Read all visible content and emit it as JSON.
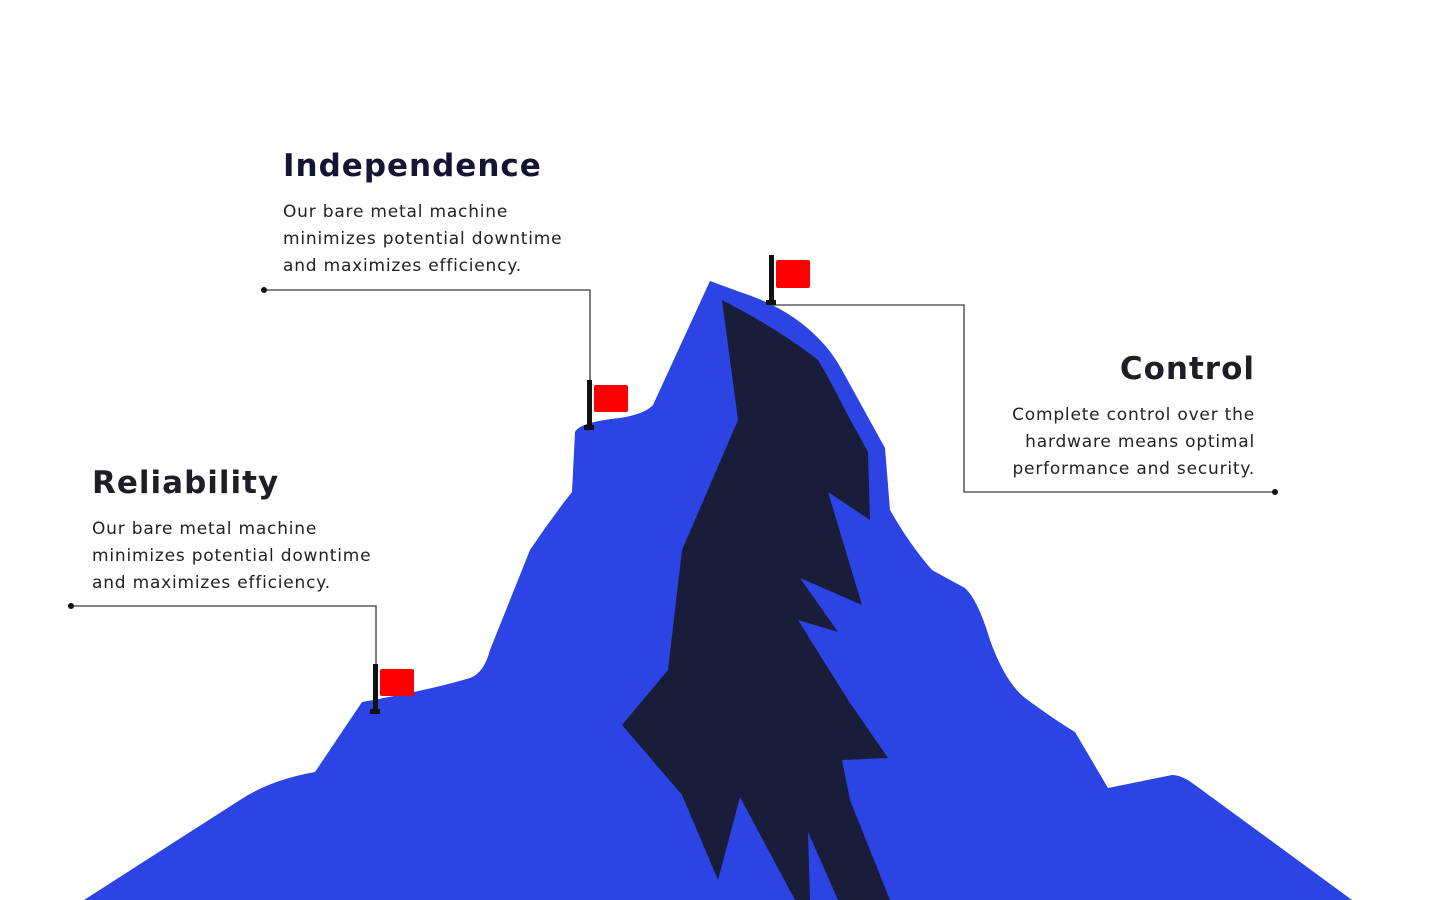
{
  "palette": {
    "mountain": "#2c44e4",
    "shadow": "#191d3a",
    "flag": "#ff0000",
    "pole": "#111111",
    "leader_line": "#3a3a3a",
    "heading_dark_navy": "#141435",
    "heading_dark": "#1e1e24",
    "body_text": "#222222",
    "background": "#ffffff"
  },
  "callouts": {
    "independence": {
      "title": "Independence",
      "lines": [
        "Our bare metal machine",
        "minimizes potential downtime",
        "and maximizes efficiency."
      ]
    },
    "reliability": {
      "title": "Reliability",
      "lines": [
        "Our bare metal machine",
        "minimizes potential downtime",
        "and maximizes efficiency."
      ]
    },
    "control": {
      "title": "Control",
      "lines": [
        "Complete control over the",
        "hardware means optimal",
        "performance and security."
      ]
    }
  },
  "icons": {
    "flag": "flag-icon",
    "mountain": "mountain-illustration"
  }
}
